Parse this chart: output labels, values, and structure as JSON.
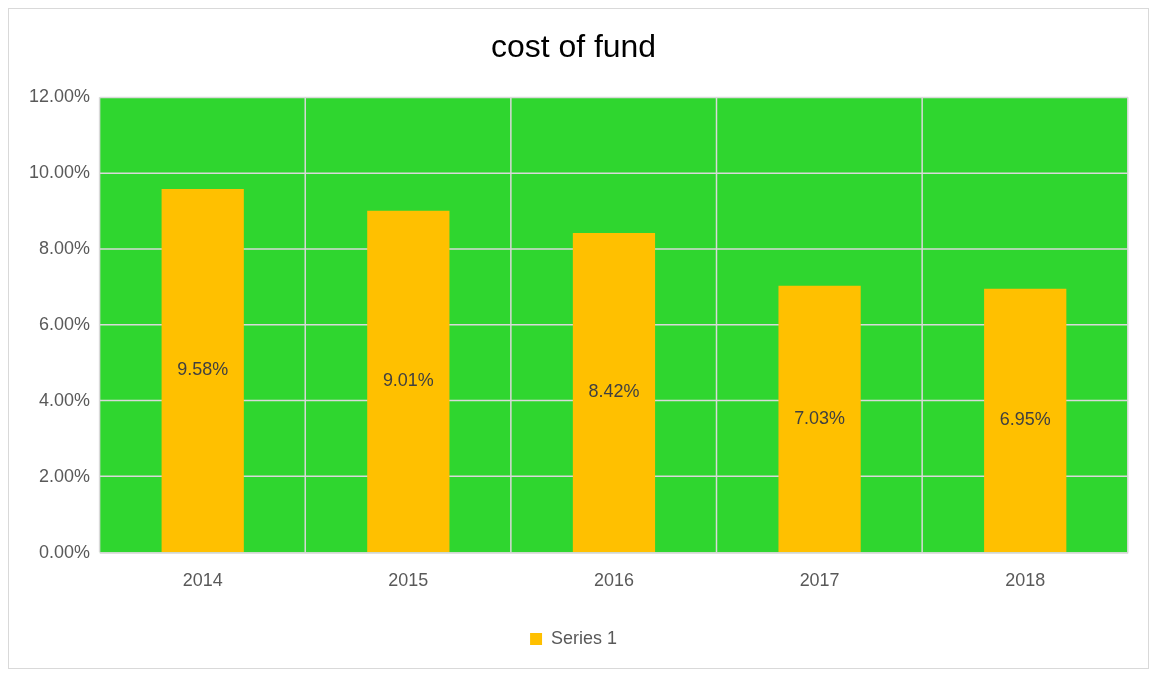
{
  "chart_data": {
    "type": "bar",
    "title": "cost of fund",
    "categories": [
      "2014",
      "2015",
      "2016",
      "2017",
      "2018"
    ],
    "series": [
      {
        "name": "Series 1",
        "color": "#ffc000",
        "values": [
          9.58,
          9.01,
          8.42,
          7.03,
          6.95
        ],
        "value_labels": [
          "9.58%",
          "9.01%",
          "8.42%",
          "7.03%",
          "6.95%"
        ]
      }
    ],
    "ylim": [
      0,
      12
    ],
    "yticks": [
      {
        "value": 0,
        "label": "0.00%"
      },
      {
        "value": 2,
        "label": "2.00%"
      },
      {
        "value": 4,
        "label": "4.00%"
      },
      {
        "value": 6,
        "label": "6.00%"
      },
      {
        "value": 8,
        "label": "8.00%"
      },
      {
        "value": 10,
        "label": "10.00%"
      },
      {
        "value": 12,
        "label": "12.00%"
      }
    ],
    "grid": true,
    "legend": "bottom"
  }
}
